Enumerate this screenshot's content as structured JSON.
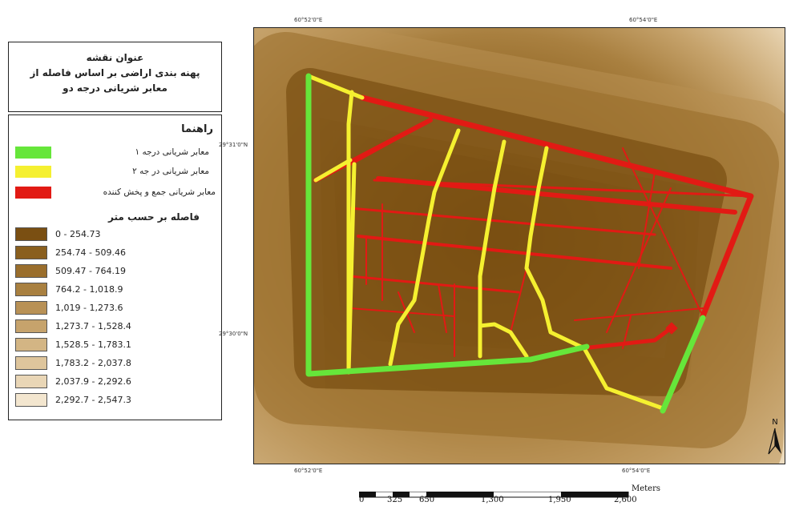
{
  "title": {
    "line1": "عنوان نقشه",
    "line2": "پهنه بندی اراضی بر اساس فاصله از",
    "line3": "معابر شریانی درجه دو"
  },
  "legend": {
    "heading": "راهنما",
    "roads": [
      {
        "label": "معابر شریانی درجه ۱",
        "color": "#66e63a"
      },
      {
        "label": "معابر شریانی در جه ۲",
        "color": "#f5f030"
      },
      {
        "label": "معابر شریانی جمع و پخش کننده",
        "color": "#e21a14"
      }
    ],
    "distance_heading": "فاصله بر حسب متر",
    "classes": [
      {
        "label": "0 - 254.73",
        "color": "#7a4f12"
      },
      {
        "label": "254.74 - 509.46",
        "color": "#8a5f1e"
      },
      {
        "label": "509.47 - 764.19",
        "color": "#9a6e2c"
      },
      {
        "label": "764.2 - 1,018.9",
        "color": "#a98040"
      },
      {
        "label": "1,019 - 1,273.6",
        "color": "#b89156"
      },
      {
        "label": "1,273.7 - 1,528.4",
        "color": "#c6a36c"
      },
      {
        "label": "1,528.5 - 1,783.1",
        "color": "#d3b584"
      },
      {
        "label": "1,783.2 - 2,037.8",
        "color": "#dec59c"
      },
      {
        "label": "2,037.9 - 2,292.6",
        "color": "#e9d6b6"
      },
      {
        "label": "2,292.7 - 2,547.3",
        "color": "#f3e6cf"
      }
    ]
  },
  "coords": {
    "top_left": "60°52'0\"E",
    "top_right": "60°54'0\"E",
    "bottom_left": "60°52'0\"E",
    "bottom_right": "60°54'0\"E",
    "left_upper": "29°31'0\"N",
    "left_lower": "29°30'0\"N"
  },
  "north": "N",
  "scalebar": {
    "unit": "Meters",
    "ticks": [
      "0",
      "325",
      "650",
      "1,300",
      "1,950",
      "2,600"
    ]
  }
}
